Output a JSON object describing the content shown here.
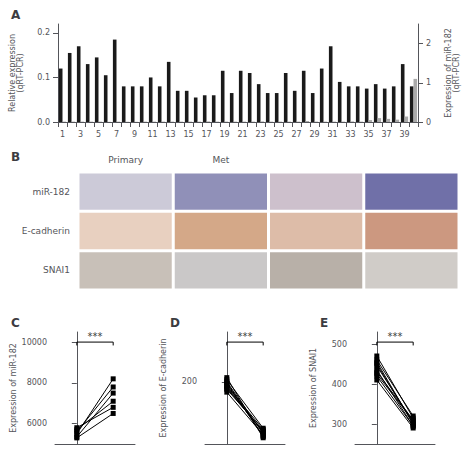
{
  "chart_data": [
    {
      "type": "bar",
      "title": "A",
      "categories": [
        "1",
        null,
        "3",
        null,
        "5",
        null,
        "7",
        null,
        "9",
        null,
        "11",
        null,
        "13",
        null,
        "15",
        null,
        "17",
        null,
        "19",
        null,
        "21",
        null,
        "23",
        null,
        "25",
        null,
        "27",
        null,
        "29",
        null,
        "31",
        null,
        "33",
        null,
        "35",
        null,
        "37",
        null,
        "39",
        null
      ],
      "ylabel": "Relative expression\n(qRT-PCR)",
      "y2label": "Expression of miR-182\n(qRT-PCR)",
      "ylim": [
        0,
        0.22
      ],
      "yticks": [
        {
          "value": 0,
          "label": "0.0"
        },
        0.1,
        0.2
      ],
      "y2lim": [
        0,
        2.5
      ],
      "y2ticks": [
        0,
        1,
        2
      ],
      "grid": false,
      "series": [
        {
          "color": "#1a1a1a",
          "values": [
            0.12,
            0.155,
            0.17,
            0.13,
            0.145,
            0.105,
            0.185,
            0.08,
            0.08,
            0.08,
            0.1,
            0.08,
            0.135,
            0.07,
            0.07,
            0.055,
            0.06,
            0.06,
            0.115,
            0.065,
            0.115,
            0.11,
            0.085,
            0.065,
            0.065,
            0.11,
            0.07,
            0.115,
            0.065,
            0.12,
            0.17,
            0.09,
            0.08,
            0.08,
            0.075,
            0.085,
            0.075,
            0.08,
            0.13,
            0.08
          ]
        },
        {
          "color": "#aaaaaa",
          "axis": "y2",
          "values": [
            0.01,
            0.01,
            0.01,
            0.01,
            0.01,
            0.005,
            0.01,
            0.005,
            0.005,
            0.01,
            0.01,
            0.01,
            0.01,
            0.01,
            0.01,
            0.01,
            0.015,
            0.01,
            0.01,
            0.01,
            0.01,
            0.01,
            0.015,
            0.01,
            0.01,
            0.01,
            0.01,
            0.025,
            0.01,
            0.01,
            0.01,
            0.01,
            0.015,
            0.01,
            0.05,
            0.1,
            0.08,
            0.06,
            0.14,
            1.1
          ]
        }
      ]
    },
    {
      "type": "tiles",
      "title": "B",
      "categories": [
        "Primary",
        "Met",
        null,
        null
      ],
      "series": [
        {
          "name": "miR-182",
          "colors": [
            "#cccad8",
            "#9090b8",
            "#cdc0cc",
            "#7070a8"
          ]
        },
        {
          "name": "E-cadherin",
          "colors": [
            "#e8d0c0",
            "#d4a888",
            "#ddbca8",
            "#cc9880"
          ]
        },
        {
          "name": "SNAI1",
          "colors": [
            "#c8c0b8",
            "#cac8c8",
            "#b8b0a8",
            "#d0ccc8"
          ]
        }
      ]
    },
    {
      "type": "line",
      "title": "C",
      "ylabel": "Expression of miR-182",
      "x": [
        0,
        1
      ],
      "xlim": [
        -0.6,
        1.6
      ],
      "xticks": [],
      "ylim": [
        5000,
        10500
      ],
      "yticks": [
        6000,
        8000,
        10000
      ],
      "tick_labels": "y",
      "grid": false,
      "color": "black",
      "marker": "square",
      "annotations": [
        "***"
      ],
      "series": [
        {
          "values": [
            5500,
            8200
          ]
        },
        {
          "values": [
            5600,
            7800
          ]
        },
        {
          "values": [
            5350,
            7500
          ]
        },
        {
          "values": [
            5300,
            6500
          ]
        },
        {
          "values": [
            5700,
            7100
          ]
        },
        {
          "values": [
            5800,
            6800
          ]
        }
      ]
    },
    {
      "type": "line",
      "title": "D",
      "ylabel": "Expression of E-cadherin",
      "x": [
        0,
        1
      ],
      "xlim": [
        -0.6,
        1.6
      ],
      "xticks": [],
      "ylim": [
        50,
        320
      ],
      "yticks": [
        200
      ],
      "tick_labels": "y",
      "grid": false,
      "color": "black",
      "marker": "square",
      "annotations": [
        "***"
      ],
      "series": [
        {
          "values": [
            195,
            70
          ]
        },
        {
          "values": [
            185,
            80
          ]
        },
        {
          "values": [
            200,
            75
          ]
        },
        {
          "values": [
            210,
            65
          ]
        },
        {
          "values": [
            205,
            88
          ]
        },
        {
          "values": [
            190,
            85
          ]
        },
        {
          "values": [
            188,
            78
          ]
        },
        {
          "values": [
            175,
            72
          ]
        },
        {
          "values": [
            198,
            68
          ]
        },
        {
          "values": [
            182,
            82
          ]
        }
      ]
    },
    {
      "type": "line",
      "title": "E",
      "ylabel": "Expression of SNAI1",
      "x": [
        0,
        1
      ],
      "xlim": [
        -0.6,
        1.6
      ],
      "xticks": [],
      "ylim": [
        250,
        530
      ],
      "yticks": [
        300,
        400,
        500
      ],
      "tick_labels": "y",
      "grid": false,
      "color": "black",
      "marker": "square",
      "annotations": [
        "***"
      ],
      "series": [
        {
          "values": [
            450,
            300
          ]
        },
        {
          "values": [
            430,
            310
          ]
        },
        {
          "values": [
            420,
            295
          ]
        },
        {
          "values": [
            460,
            320
          ]
        },
        {
          "values": [
            445,
            305
          ]
        },
        {
          "values": [
            410,
            290
          ]
        },
        {
          "values": [
            470,
            315
          ]
        },
        {
          "values": [
            455,
            300
          ]
        },
        {
          "values": [
            435,
            295
          ]
        },
        {
          "values": [
            425,
            308
          ]
        }
      ]
    }
  ]
}
